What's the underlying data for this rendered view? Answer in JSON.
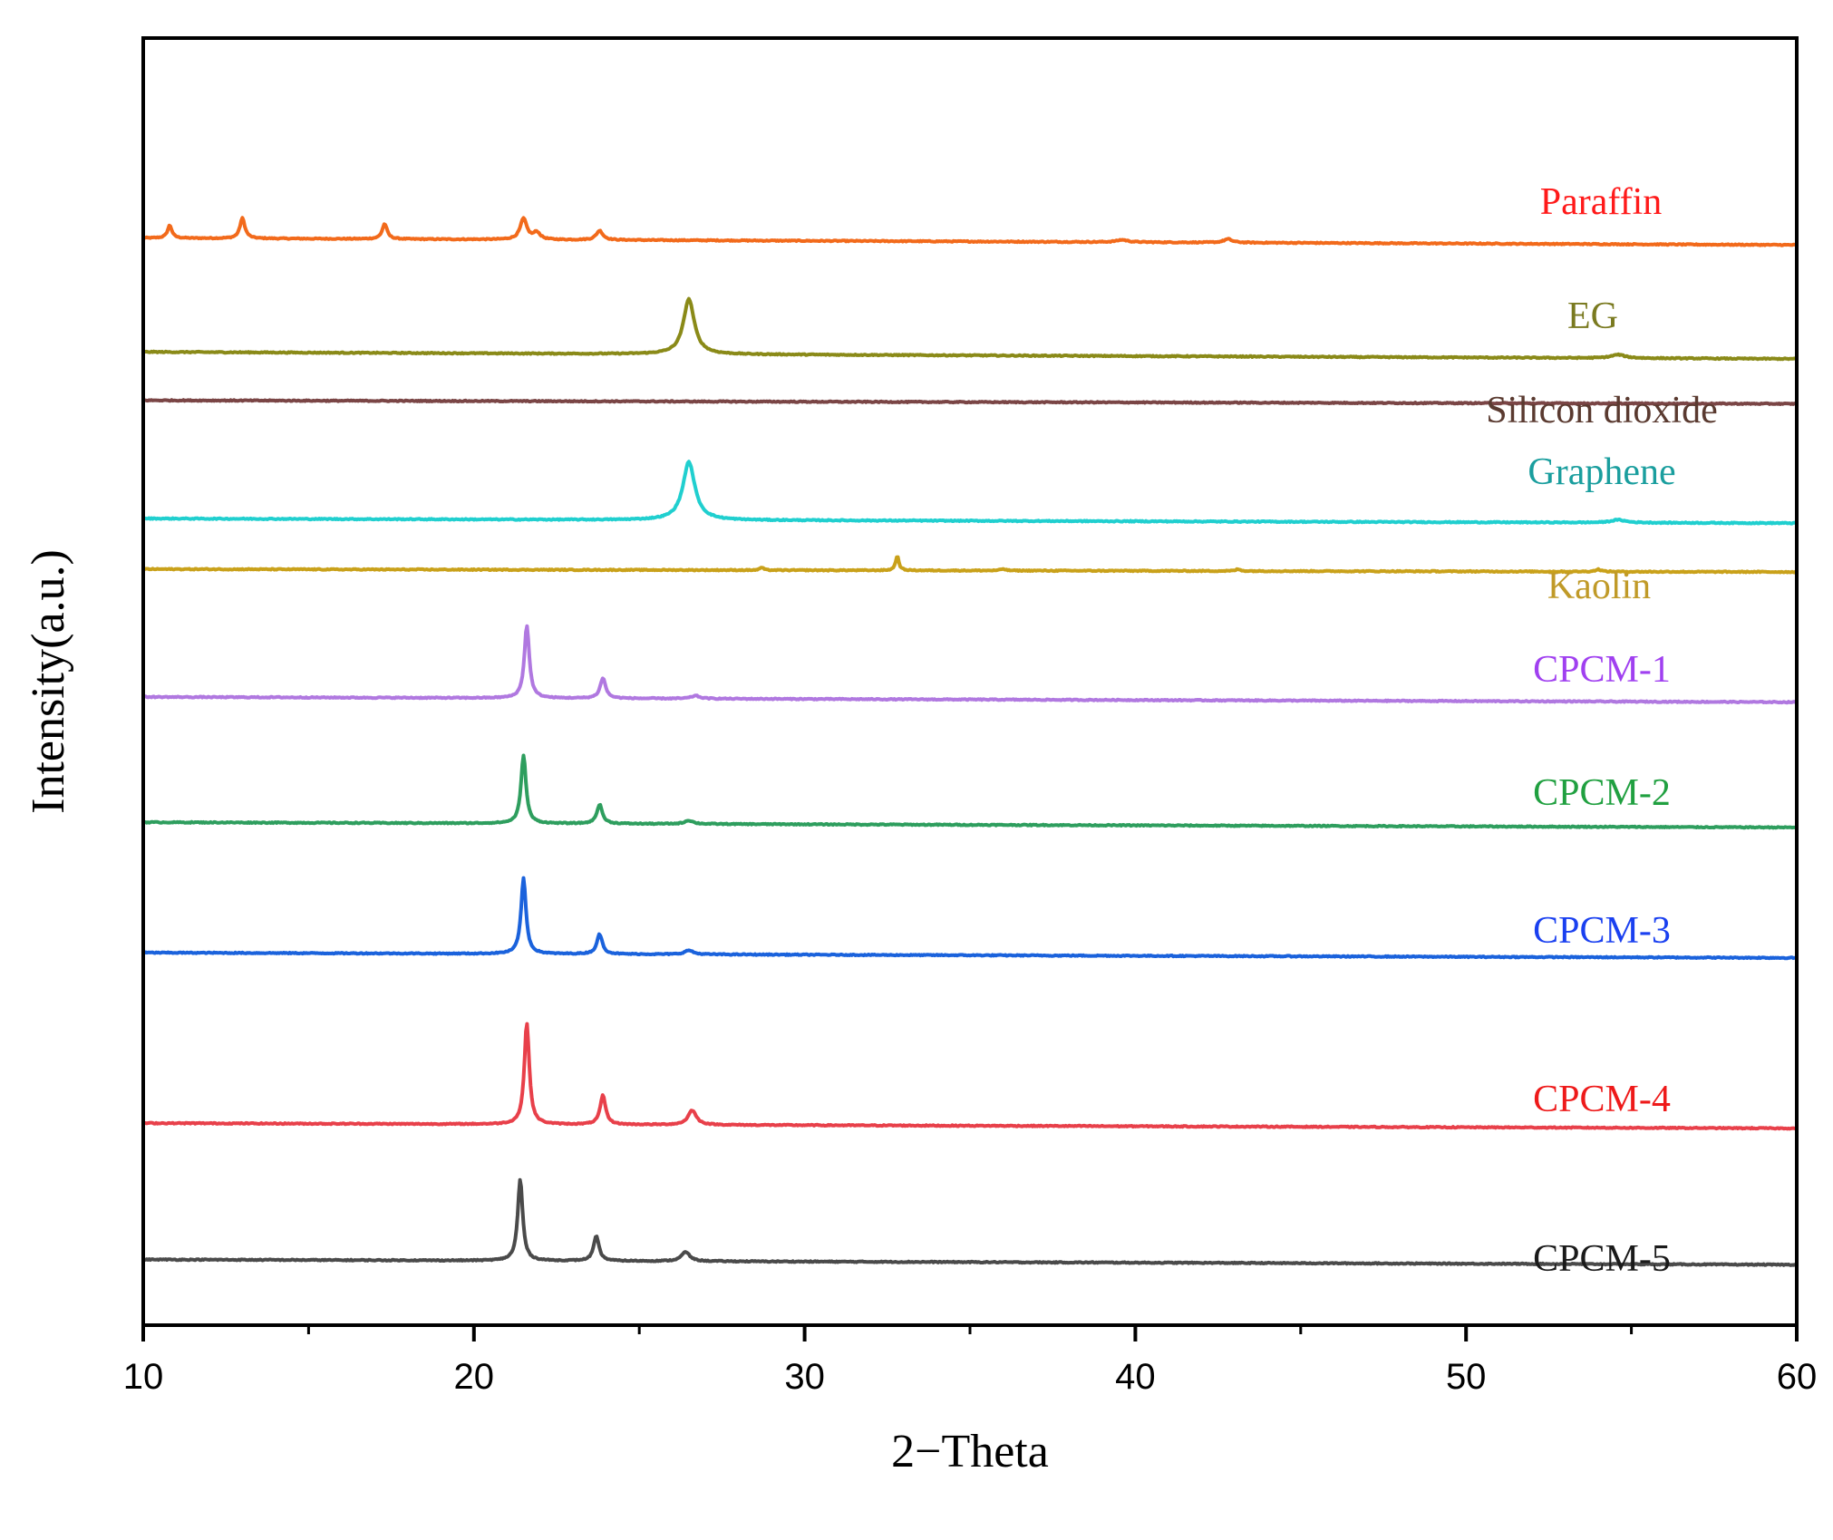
{
  "chart_data": {
    "type": "line",
    "title": "",
    "xlabel": "2−Theta",
    "ylabel": "Intensity(a.u.)",
    "xlim": [
      10,
      60
    ],
    "x_major_ticks": [
      10,
      20,
      30,
      40,
      50,
      60
    ],
    "x_minor_ticks": [
      15,
      25,
      35,
      45,
      55
    ],
    "grid": false,
    "y_ticks_shown": false,
    "series": [
      {
        "name": "Paraffin",
        "color": "#f26a1b",
        "label_color": "#ff1a1a",
        "offset": 9.2,
        "start": 0.08,
        "end": -0.04,
        "peaks": [
          [
            10.8,
            0.22,
            0.08
          ],
          [
            13.0,
            0.35,
            0.09
          ],
          [
            17.3,
            0.26,
            0.09
          ],
          [
            21.5,
            0.36,
            0.12
          ],
          [
            21.9,
            0.12,
            0.12
          ],
          [
            23.8,
            0.16,
            0.12
          ],
          [
            39.6,
            0.04,
            0.2
          ],
          [
            42.8,
            0.06,
            0.15
          ]
        ]
      },
      {
        "name": "EG",
        "color": "#8a8a18",
        "label_color": "#7a7a20",
        "offset": 7.85,
        "start": 0.1,
        "end": -0.02,
        "peaks": [
          [
            26.5,
            0.95,
            0.2
          ],
          [
            54.6,
            0.06,
            0.25
          ]
        ]
      },
      {
        "name": "Silicon dioxide",
        "color": "#7a4545",
        "label_color": "#5a3a30",
        "offset": 7.35,
        "start": 0.0,
        "end": -0.06,
        "peaks": []
      },
      {
        "name": "Graphene",
        "color": "#20cfcf",
        "label_color": "#1a9e9e",
        "offset": 5.95,
        "start": 0.02,
        "end": -0.06,
        "peaks": [
          [
            26.5,
            1.0,
            0.22
          ],
          [
            54.6,
            0.05,
            0.25
          ]
        ]
      },
      {
        "name": "Kaolin",
        "color": "#c9a11a",
        "label_color": "#c09a28",
        "offset": 5.35,
        "start": 0.03,
        "end": -0.02,
        "peaks": [
          [
            28.7,
            0.05,
            0.06
          ],
          [
            32.8,
            0.25,
            0.06
          ],
          [
            36.0,
            0.03,
            0.08
          ],
          [
            43.1,
            0.03,
            0.08
          ],
          [
            54.0,
            0.04,
            0.1
          ]
        ]
      },
      {
        "name": "CPCM-1",
        "color": "#b078e0",
        "label_color": "#a040f0",
        "offset": 3.85,
        "start": 0.03,
        "end": -0.06,
        "peaks": [
          [
            21.6,
            1.25,
            0.09
          ],
          [
            23.9,
            0.35,
            0.1
          ],
          [
            26.7,
            0.05,
            0.15
          ]
        ]
      },
      {
        "name": "CPCM-2",
        "color": "#2e9e5e",
        "label_color": "#20a040",
        "offset": 2.38,
        "start": 0.03,
        "end": -0.06,
        "peaks": [
          [
            21.5,
            1.18,
            0.09
          ],
          [
            23.8,
            0.33,
            0.1
          ],
          [
            26.5,
            0.06,
            0.15
          ]
        ]
      },
      {
        "name": "CPCM-3",
        "color": "#1a62dc",
        "label_color": "#1a40f0",
        "offset": 0.85,
        "start": 0.03,
        "end": -0.06,
        "peaks": [
          [
            21.5,
            1.3,
            0.09
          ],
          [
            23.8,
            0.34,
            0.1
          ],
          [
            26.5,
            0.07,
            0.15
          ]
        ]
      },
      {
        "name": "CPCM-4",
        "color": "#e8404a",
        "label_color": "#ee1a1a",
        "offset": -1.15,
        "start": 0.03,
        "end": -0.06,
        "peaks": [
          [
            21.6,
            1.75,
            0.09
          ],
          [
            23.9,
            0.5,
            0.1
          ],
          [
            26.6,
            0.25,
            0.15
          ]
        ]
      },
      {
        "name": "CPCM-5",
        "color": "#4a4a4a",
        "label_color": "#1a1a1a",
        "offset": -2.75,
        "start": 0.03,
        "end": -0.06,
        "peaks": [
          [
            21.4,
            1.4,
            0.09
          ],
          [
            23.7,
            0.42,
            0.1
          ],
          [
            26.4,
            0.16,
            0.15
          ]
        ]
      }
    ]
  }
}
